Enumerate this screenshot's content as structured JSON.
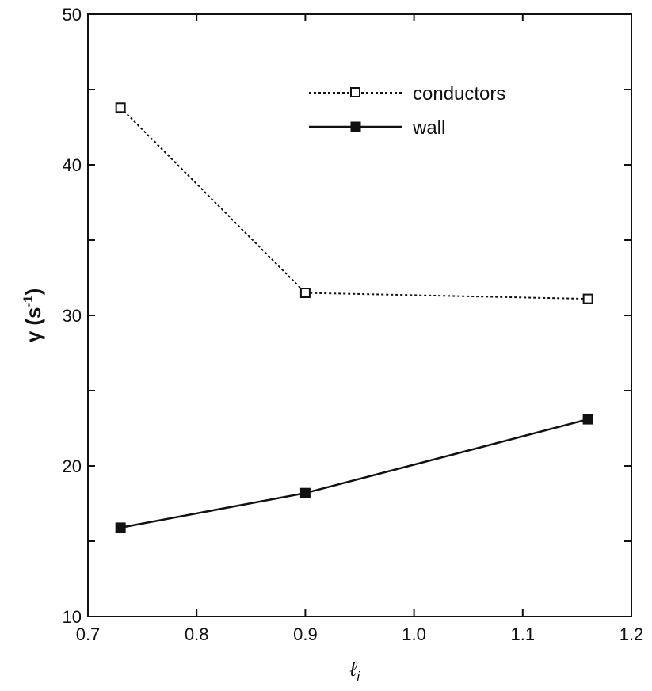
{
  "chart_data": {
    "type": "line",
    "title": "",
    "xlabel": "ℓ",
    "xlabel_subscript": "i",
    "ylabel": "γ (s",
    "ylabel_superscript": "-1",
    "ylabel_suffix": ")",
    "xlim": [
      0.7,
      1.2
    ],
    "ylim": [
      10,
      50
    ],
    "x_ticks": [
      0.7,
      0.8,
      0.9,
      1.0,
      1.1,
      1.2
    ],
    "x_tick_labels": [
      "0.7",
      "0.8",
      "0.9",
      "1.0",
      "1.1",
      "1.2"
    ],
    "y_ticks": [
      10,
      20,
      30,
      40,
      50
    ],
    "y_tick_labels": [
      "10",
      "20",
      "30",
      "40",
      "50"
    ],
    "grid": false,
    "legend_position": "top-right",
    "series": [
      {
        "name": "conductors",
        "style": "dotted",
        "marker": "open-square",
        "color": "#111111",
        "x": [
          0.73,
          0.9,
          1.16
        ],
        "y": [
          43.8,
          31.5,
          31.1
        ]
      },
      {
        "name": "wall",
        "style": "solid",
        "marker": "filled-square",
        "color": "#111111",
        "x": [
          0.73,
          0.9,
          1.16
        ],
        "y": [
          15.9,
          18.2,
          23.1
        ]
      }
    ]
  }
}
